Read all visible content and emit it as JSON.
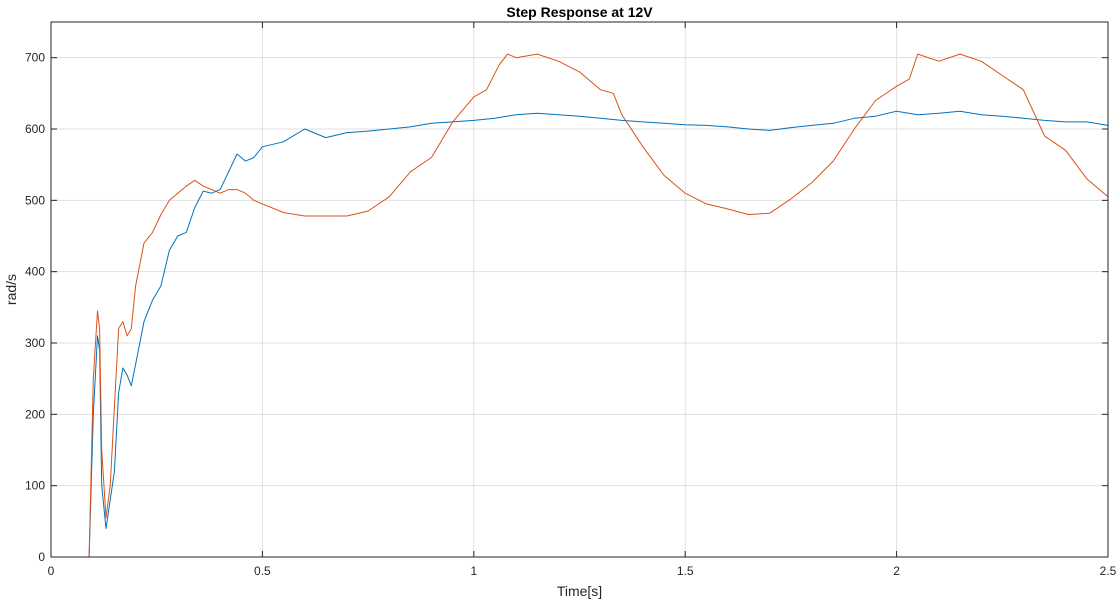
{
  "chart_data": {
    "type": "line",
    "title": "Step Response at 12V",
    "xlabel": "Time[s]",
    "ylabel": "rad/s",
    "xlim": [
      0,
      2.5
    ],
    "ylim": [
      0,
      750
    ],
    "xticks": [
      0,
      0.5,
      1,
      1.5,
      2,
      2.5
    ],
    "xtick_labels": [
      "0",
      "0.5",
      "1",
      "1.5",
      "2",
      "2.5"
    ],
    "yticks": [
      0,
      100,
      200,
      300,
      400,
      500,
      600,
      700
    ],
    "ytick_labels": [
      "0",
      "100",
      "200",
      "300",
      "400",
      "500",
      "600",
      "700"
    ],
    "grid": true,
    "series": [
      {
        "color": "#0072bd",
        "x": [
          0.09,
          0.1,
          0.11,
          0.115,
          0.12,
          0.13,
          0.14,
          0.15,
          0.16,
          0.17,
          0.18,
          0.19,
          0.2,
          0.22,
          0.24,
          0.26,
          0.28,
          0.3,
          0.32,
          0.34,
          0.36,
          0.38,
          0.4,
          0.42,
          0.44,
          0.46,
          0.48,
          0.5,
          0.55,
          0.6,
          0.65,
          0.7,
          0.75,
          0.8,
          0.85,
          0.9,
          0.95,
          1.0,
          1.05,
          1.1,
          1.15,
          1.2,
          1.25,
          1.3,
          1.35,
          1.4,
          1.45,
          1.5,
          1.55,
          1.6,
          1.65,
          1.7,
          1.75,
          1.8,
          1.85,
          1.9,
          1.95,
          2.0,
          2.05,
          2.1,
          2.15,
          2.2,
          2.25,
          2.3,
          2.35,
          2.4,
          2.45,
          2.5
        ],
        "y": [
          0,
          200,
          310,
          290,
          100,
          40,
          80,
          120,
          230,
          265,
          255,
          240,
          270,
          330,
          360,
          380,
          430,
          450,
          455,
          490,
          513,
          510,
          515,
          540,
          565,
          555,
          560,
          575,
          582,
          600,
          588,
          595,
          597,
          600,
          603,
          608,
          610,
          612,
          615,
          620,
          622,
          620,
          618,
          615,
          612,
          610,
          608,
          606,
          605,
          603,
          600,
          598,
          602,
          605,
          608,
          615,
          618,
          625,
          620,
          622,
          625,
          620,
          618,
          615,
          612,
          610,
          610,
          605
        ]
      },
      {
        "color": "#d95319",
        "x": [
          0.09,
          0.1,
          0.11,
          0.115,
          0.12,
          0.13,
          0.14,
          0.15,
          0.16,
          0.17,
          0.18,
          0.19,
          0.2,
          0.22,
          0.24,
          0.26,
          0.28,
          0.3,
          0.32,
          0.34,
          0.36,
          0.38,
          0.4,
          0.42,
          0.44,
          0.46,
          0.48,
          0.5,
          0.55,
          0.6,
          0.65,
          0.7,
          0.75,
          0.8,
          0.85,
          0.9,
          0.95,
          1.0,
          1.03,
          1.06,
          1.08,
          1.1,
          1.15,
          1.2,
          1.25,
          1.3,
          1.33,
          1.35,
          1.4,
          1.45,
          1.5,
          1.55,
          1.6,
          1.65,
          1.7,
          1.75,
          1.8,
          1.85,
          1.9,
          1.95,
          2.0,
          2.03,
          2.05,
          2.1,
          2.15,
          2.2,
          2.25,
          2.3,
          2.35,
          2.4,
          2.45,
          2.5
        ],
        "y": [
          0,
          250,
          345,
          320,
          150,
          55,
          100,
          210,
          320,
          330,
          310,
          320,
          380,
          440,
          455,
          480,
          500,
          510,
          520,
          528,
          520,
          515,
          510,
          515,
          515,
          510,
          500,
          495,
          483,
          478,
          478,
          478,
          485,
          505,
          540,
          560,
          610,
          645,
          655,
          690,
          705,
          700,
          705,
          695,
          680,
          655,
          650,
          620,
          575,
          535,
          510,
          495,
          488,
          480,
          482,
          502,
          525,
          555,
          600,
          640,
          660,
          670,
          705,
          695,
          705,
          695,
          675,
          655,
          590,
          570,
          530,
          505
        ]
      }
    ]
  }
}
